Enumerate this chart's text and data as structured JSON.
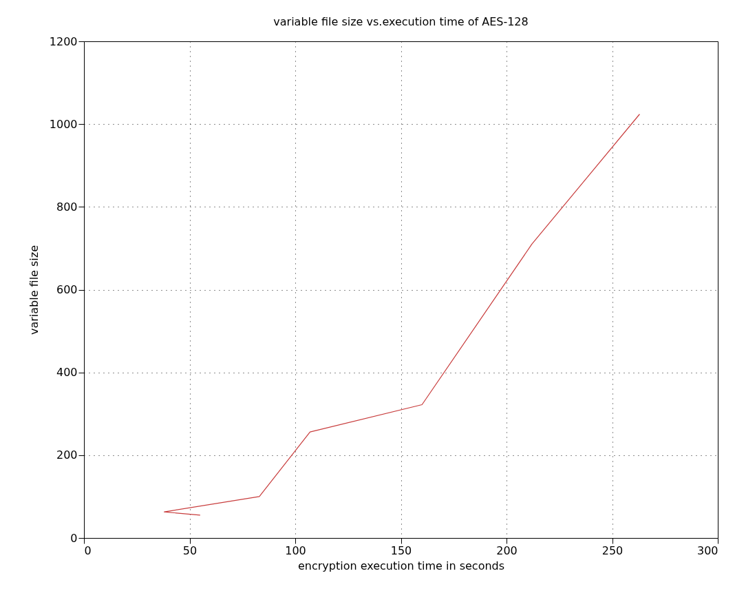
{
  "chart_data": {
    "type": "line",
    "title": "variable file size vs.execution time of AES-128",
    "xlabel": "encryption execution time in seconds",
    "ylabel": "variable file size",
    "series": [
      {
        "color": "#c83c3c",
        "x": [
          55,
          38,
          83,
          107,
          160,
          212,
          263
        ],
        "values": [
          55,
          63,
          100,
          256,
          322,
          710,
          1024
        ]
      }
    ],
    "xlim": [
      0,
      300
    ],
    "xticks": [
      0,
      50,
      100,
      150,
      200,
      250,
      300
    ],
    "ylim": [
      0,
      1200
    ],
    "yticks": [
      0,
      200,
      400,
      600,
      800,
      1000,
      1200
    ],
    "grid": true,
    "marker": "none",
    "line_style": "solid"
  }
}
